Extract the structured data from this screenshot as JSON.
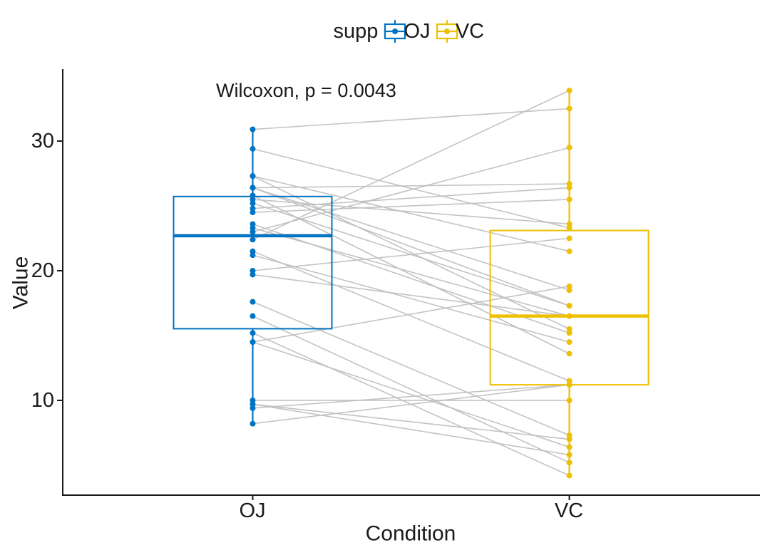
{
  "chart_data": {
    "type": "paired-boxplot",
    "title": "",
    "annotation": "Wilcoxon, p = 0.0043",
    "legend": {
      "title": "supp",
      "items": [
        {
          "label": "OJ",
          "color": "#0073C2"
        },
        {
          "label": "VC",
          "color": "#EFC000"
        }
      ]
    },
    "x_axis": {
      "label": "Condition",
      "categories": [
        "OJ",
        "VC"
      ]
    },
    "y_axis": {
      "label": "Value",
      "ticks": [
        30,
        20,
        10
      ],
      "tick_labels": [
        "30",
        "20",
        "10"
      ],
      "domain": [
        2.69,
        35.55
      ]
    },
    "pair_line_color": "#c0c0c0",
    "axis_color": "#1a1a1a",
    "series": [
      {
        "name": "OJ",
        "color": "#0073C2",
        "values": [
          15.2,
          21.5,
          17.6,
          9.7,
          14.5,
          10.0,
          8.2,
          9.4,
          16.5,
          9.7,
          19.7,
          23.3,
          23.6,
          26.4,
          20.0,
          25.2,
          25.8,
          21.2,
          14.5,
          27.3,
          25.5,
          26.4,
          22.4,
          24.5,
          24.8,
          30.9,
          26.4,
          27.3,
          29.4,
          23.0
        ]
      },
      {
        "name": "VC",
        "color": "#EFC000",
        "values": [
          4.2,
          11.5,
          7.3,
          5.8,
          6.4,
          10.0,
          11.2,
          11.2,
          5.2,
          7.0,
          16.5,
          16.5,
          15.2,
          17.3,
          22.5,
          17.3,
          13.6,
          14.5,
          18.8,
          15.5,
          23.6,
          18.5,
          33.9,
          25.5,
          26.4,
          32.5,
          26.7,
          21.5,
          23.3,
          29.5
        ]
      }
    ],
    "box_stats": {
      "OJ": {
        "min": 8.2,
        "q1": 15.525,
        "median": 22.7,
        "q3": 25.725,
        "max": 30.9
      },
      "VC": {
        "min": 4.2,
        "q1": 11.2,
        "median": 16.5,
        "q3": 23.1,
        "max": 33.9
      }
    }
  }
}
